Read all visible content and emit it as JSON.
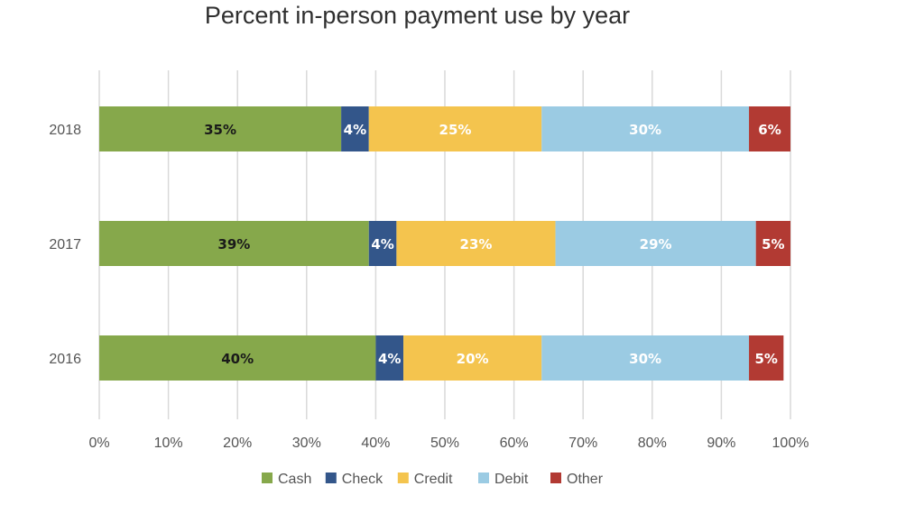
{
  "chart_data": {
    "type": "bar",
    "orientation": "horizontal",
    "stacked": true,
    "title": "Percent in-person payment use by year",
    "xlabel": "",
    "ylabel": "",
    "categories": [
      "2018",
      "2017",
      "2016"
    ],
    "series": [
      {
        "name": "Cash",
        "color": "#86a84b",
        "values": [
          35,
          39,
          40
        ],
        "labels": [
          "35%",
          "39%",
          "40%"
        ],
        "label_color": "#1a1a1a"
      },
      {
        "name": "Check",
        "color": "#33568a",
        "values": [
          4,
          4,
          4
        ],
        "labels": [
          "4%",
          "4%",
          "4%"
        ],
        "label_color": "#ffffff"
      },
      {
        "name": "Credit",
        "color": "#f4c44e",
        "values": [
          25,
          23,
          20
        ],
        "labels": [
          "25%",
          "23%",
          "20%"
        ],
        "label_color": "#ffffff"
      },
      {
        "name": "Debit",
        "color": "#9bcbe3",
        "values": [
          30,
          29,
          30
        ],
        "labels": [
          "30%",
          "29%",
          "30%"
        ],
        "label_color": "#ffffff"
      },
      {
        "name": "Other",
        "color": "#b23a33",
        "values": [
          6,
          5,
          5
        ],
        "labels": [
          "6%",
          "5%",
          "5%"
        ],
        "label_color": "#ffffff"
      }
    ],
    "xlim": [
      0,
      100
    ],
    "xticks": [
      0,
      10,
      20,
      30,
      40,
      50,
      60,
      70,
      80,
      90,
      100
    ],
    "xtick_labels": [
      "0%",
      "10%",
      "20%",
      "30%",
      "40%",
      "50%",
      "60%",
      "70%",
      "80%",
      "90%",
      "100%"
    ],
    "grid": "vertical",
    "legend": "bottom"
  }
}
